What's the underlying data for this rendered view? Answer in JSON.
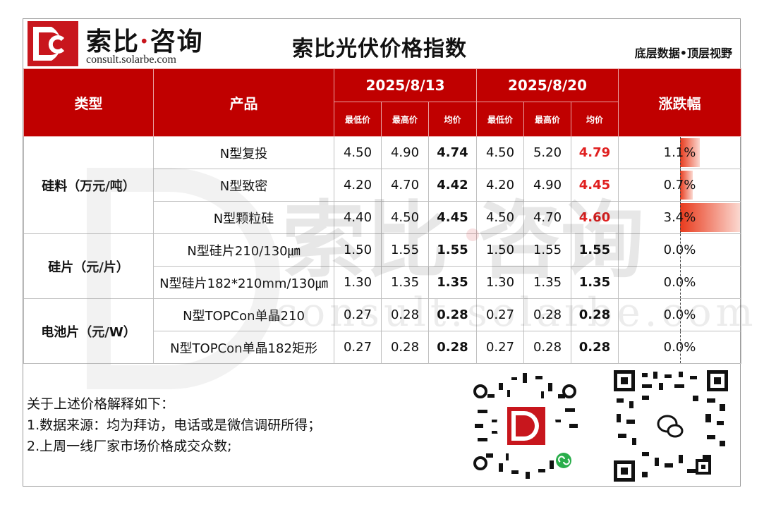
{
  "header": {
    "brand": "索比",
    "brand_dot": "·",
    "brand2": "咨询",
    "url": "consult.solarbe.com",
    "title": "索比光伏价格指数",
    "slogan": "底层数据•顶层视野"
  },
  "table": {
    "col_type": "类型",
    "col_product": "产品",
    "date1": "2025/8/13",
    "date2": "2025/8/20",
    "col_change": "涨跌幅",
    "sub_min": "最低价",
    "sub_max": "最高价",
    "sub_avg": "均价",
    "groups": [
      {
        "category": "硅料（万元/吨）",
        "rows": [
          {
            "product": "N型复投",
            "d1_min": "4.50",
            "d1_max": "4.90",
            "d1_avg": "4.74",
            "d2_min": "4.50",
            "d2_max": "5.20",
            "d2_avg": "4.79",
            "change": "1.1%",
            "change_value": 1.1,
            "highlight": true
          },
          {
            "product": "N型致密",
            "d1_min": "4.20",
            "d1_max": "4.70",
            "d1_avg": "4.42",
            "d2_min": "4.20",
            "d2_max": "4.90",
            "d2_avg": "4.45",
            "change": "0.7%",
            "change_value": 0.7,
            "highlight": true
          },
          {
            "product": "N型颗粒硅",
            "d1_min": "4.40",
            "d1_max": "4.50",
            "d1_avg": "4.45",
            "d2_min": "4.50",
            "d2_max": "4.70",
            "d2_avg": "4.60",
            "change": "3.4%",
            "change_value": 3.4,
            "highlight": true
          }
        ]
      },
      {
        "category": "硅片（元/片）",
        "rows": [
          {
            "product": "N型硅片210/130㎛",
            "d1_min": "1.50",
            "d1_max": "1.55",
            "d1_avg": "1.55",
            "d2_min": "1.50",
            "d2_max": "1.55",
            "d2_avg": "1.55",
            "change": "0.0%",
            "change_value": 0.0,
            "highlight": false
          },
          {
            "product": "N型硅片182*210mm/130㎛",
            "d1_min": "1.30",
            "d1_max": "1.35",
            "d1_avg": "1.35",
            "d2_min": "1.30",
            "d2_max": "1.35",
            "d2_avg": "1.35",
            "change": "0.0%",
            "change_value": 0.0,
            "highlight": false
          }
        ]
      },
      {
        "category": "电池片（元/W）",
        "rows": [
          {
            "product": "N型TOPCon单晶210",
            "d1_min": "0.27",
            "d1_max": "0.28",
            "d1_avg": "0.28",
            "d2_min": "0.27",
            "d2_max": "0.28",
            "d2_avg": "0.28",
            "change": "0.0%",
            "change_value": 0.0,
            "highlight": false
          },
          {
            "product": "N型TOPCon单晶182矩形",
            "d1_min": "0.27",
            "d1_max": "0.28",
            "d1_avg": "0.28",
            "d2_min": "0.27",
            "d2_max": "0.28",
            "d2_avg": "0.28",
            "change": "0.0%",
            "change_value": 0.0,
            "highlight": false
          }
        ]
      }
    ]
  },
  "watermark": {
    "brand": "索比·咨询",
    "url": "consult.solarbe.com"
  },
  "notes": {
    "line1": "关于上述价格解释如下：",
    "line2": "1.数据来源：均为拜访，电话或是微信调研所得；",
    "line3": "2.上周一线厂家市场价格成交众数;"
  },
  "colors": {
    "brand_red": "#c00000",
    "rise_red": "#e02020"
  }
}
